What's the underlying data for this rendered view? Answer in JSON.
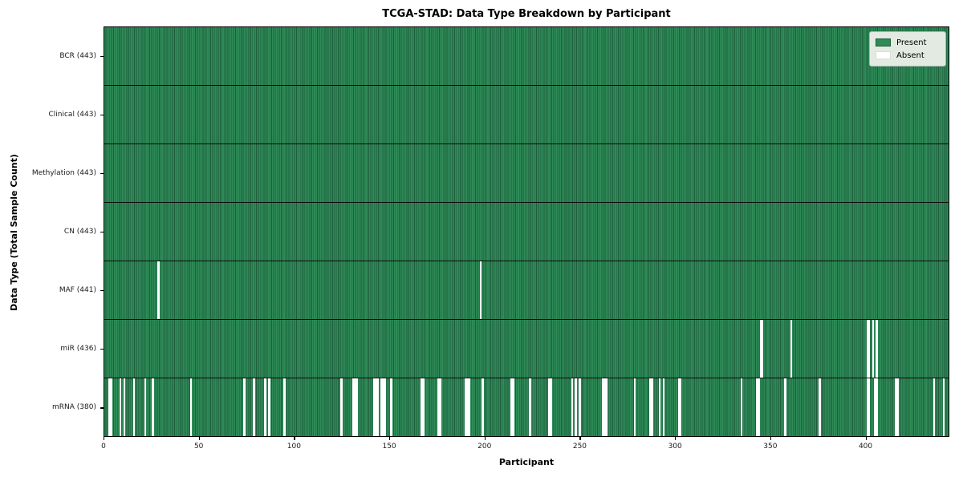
{
  "title": "TCGA-STAD: Data Type Breakdown by Participant",
  "x_axis": {
    "label": "Participant",
    "ticks": [
      0,
      50,
      100,
      150,
      200,
      250,
      300,
      350,
      400
    ]
  },
  "y_axis": {
    "label": "Data Type (Total Sample Count)"
  },
  "legend": {
    "entries": [
      {
        "label": "Present",
        "color": "#2e8b57",
        "edge": "#1e5e3d"
      },
      {
        "label": "Absent",
        "color": "#ffffff",
        "edge": "#dddddd"
      }
    ]
  },
  "colors": {
    "bar_face": "#2e8b57",
    "bar_edge": "#1e5e3d",
    "row_separator": "#0c0c0c",
    "absent": "#ffffff",
    "legend_bg": "#e3eae2"
  },
  "chart_data": {
    "type": "heatmap",
    "title": "TCGA-STAD: Data Type Breakdown by Participant",
    "xlabel": "Participant",
    "ylabel": "Data Type (Total Sample Count)",
    "x_ticks": [
      0,
      50,
      100,
      150,
      200,
      250,
      300,
      350,
      400
    ],
    "xlim": [
      0,
      444
    ],
    "n_participants": 443,
    "legend": [
      "Present",
      "Absent"
    ],
    "legend_position": "upper right",
    "grid": false,
    "rows": [
      {
        "label": "BCR (443)",
        "data_type": "BCR",
        "present_count": 443,
        "absent_participants": []
      },
      {
        "label": "Clinical (443)",
        "data_type": "Clinical",
        "present_count": 443,
        "absent_participants": []
      },
      {
        "label": "Methylation (443)",
        "data_type": "Methylation",
        "present_count": 443,
        "absent_participants": []
      },
      {
        "label": "CN (443)",
        "data_type": "CN",
        "present_count": 443,
        "absent_participants": []
      },
      {
        "label": "MAF (441)",
        "data_type": "MAF",
        "present_count": 441,
        "absent_participants": [
          28,
          197
        ]
      },
      {
        "label": "miR (436)",
        "data_type": "miR",
        "present_count": 436,
        "absent_participants": [
          344,
          345,
          360,
          400,
          401,
          403,
          405
        ]
      },
      {
        "label": "mRNA (380)",
        "data_type": "mRNA",
        "present_count": 380,
        "absent_participants": [
          2,
          3,
          8,
          10,
          15,
          21,
          25,
          45,
          73,
          78,
          84,
          86,
          94,
          124,
          130,
          131,
          132,
          141,
          142,
          143,
          145,
          146,
          147,
          150,
          166,
          167,
          175,
          176,
          189,
          190,
          191,
          198,
          213,
          214,
          223,
          233,
          234,
          245,
          247,
          249,
          261,
          262,
          263,
          278,
          286,
          287,
          291,
          293,
          301,
          302,
          334,
          342,
          343,
          357,
          375,
          400,
          401,
          404,
          405,
          415,
          416,
          435,
          440
        ]
      }
    ]
  }
}
